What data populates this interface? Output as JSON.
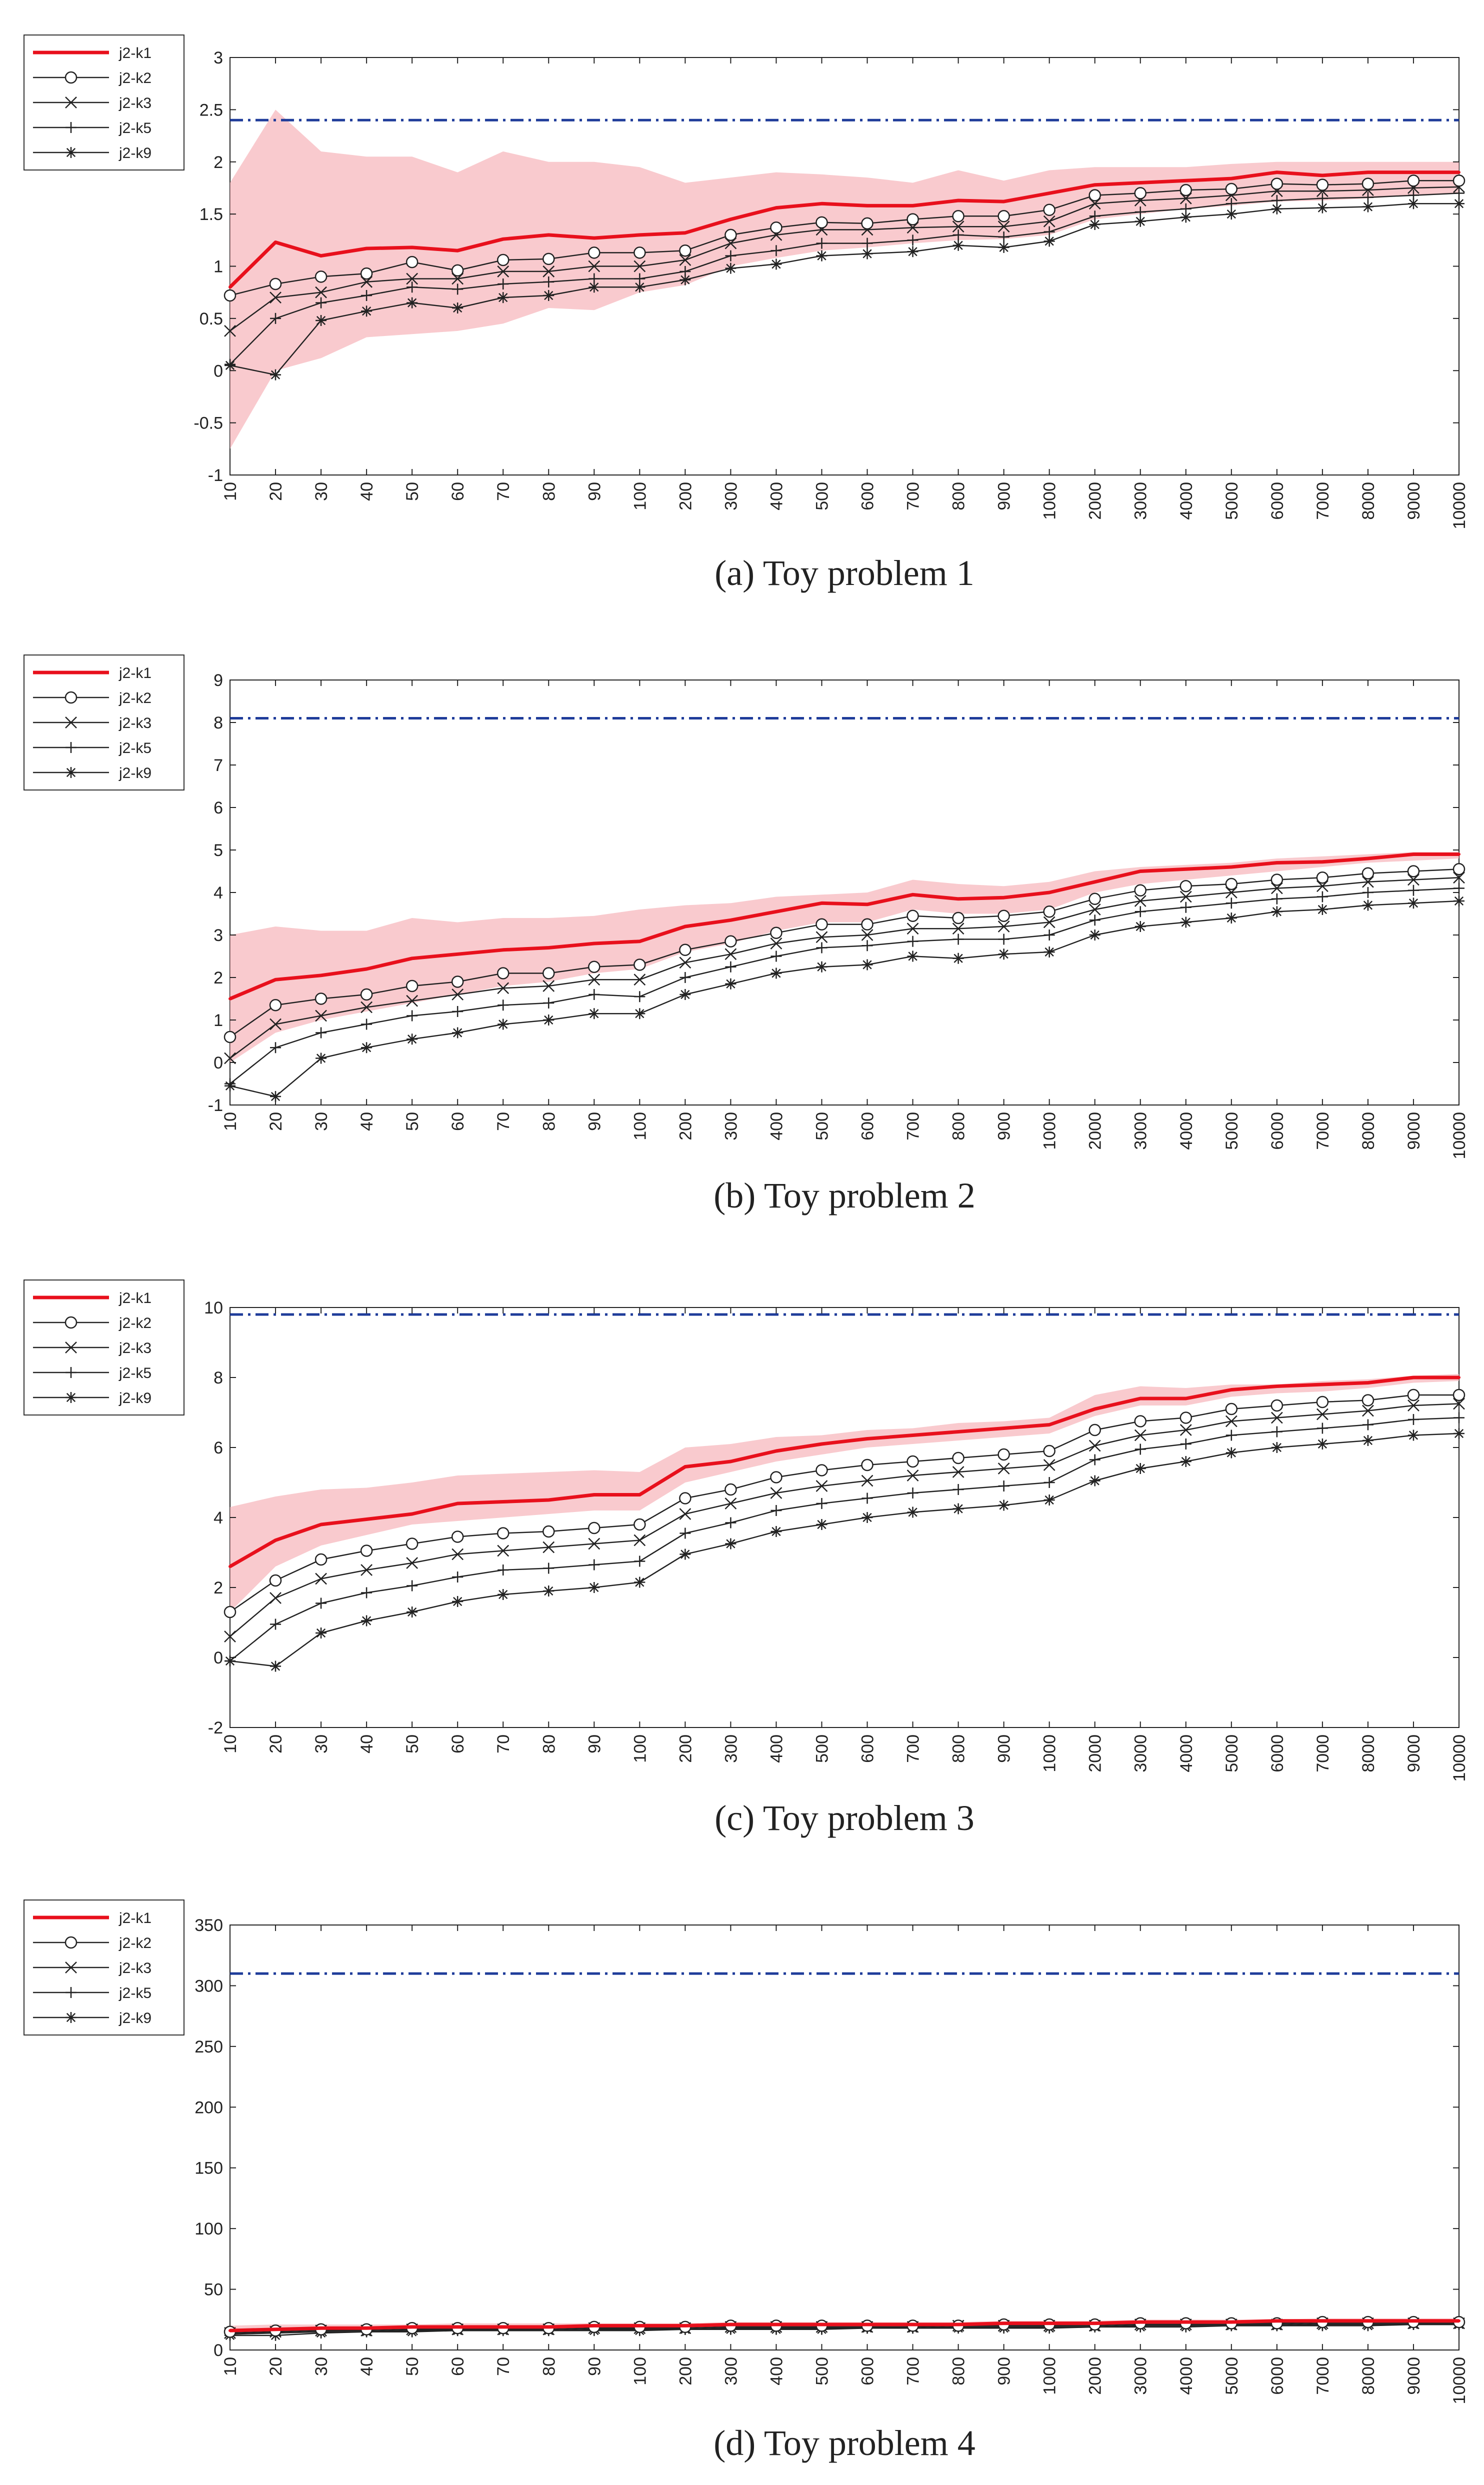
{
  "figure": {
    "x_categories": [
      "10",
      "20",
      "30",
      "40",
      "50",
      "60",
      "70",
      "80",
      "90",
      "100",
      "200",
      "300",
      "400",
      "500",
      "600",
      "700",
      "800",
      "900",
      "1000",
      "2000",
      "3000",
      "4000",
      "5000",
      "6000",
      "7000",
      "8000",
      "9000",
      "10000"
    ],
    "legend": [
      "j2-k1",
      "j2-k2",
      "j2-k3",
      "j2-k5",
      "j2-k9"
    ],
    "colors": {
      "main": "#e8101c",
      "band": "#f7b8bd",
      "ref": "#1f3c9a",
      "other": "#222222"
    }
  },
  "chart_data": [
    {
      "type": "line",
      "title": "Toy problem 1",
      "caption": "(a)  Toy problem 1",
      "ylim": [
        -1,
        3
      ],
      "yticks": [
        "-1",
        "-0.5",
        "0",
        "0.5",
        "1",
        "1.5",
        "2",
        "2.5",
        "3"
      ],
      "ytick_values": [
        -1,
        -0.5,
        0,
        0.5,
        1,
        1.5,
        2,
        2.5,
        3
      ],
      "reference": 2.4,
      "band_upper": [
        1.8,
        2.5,
        2.1,
        2.05,
        2.05,
        1.9,
        2.1,
        2.0,
        2.0,
        1.95,
        1.8,
        1.85,
        1.9,
        1.88,
        1.85,
        1.8,
        1.92,
        1.82,
        1.92,
        1.95,
        1.95,
        1.95,
        1.98,
        2.0,
        2.0,
        2.0,
        2.0,
        2.0
      ],
      "band_lower": [
        -0.75,
        0.0,
        0.12,
        0.32,
        0.35,
        0.38,
        0.45,
        0.6,
        0.58,
        0.75,
        0.82,
        1.0,
        1.08,
        1.15,
        1.18,
        1.22,
        1.25,
        1.26,
        1.3,
        1.45,
        1.5,
        1.55,
        1.58,
        1.62,
        1.63,
        1.65,
        1.68,
        1.7
      ],
      "series": [
        {
          "name": "j2-k1",
          "values": [
            0.8,
            1.23,
            1.1,
            1.17,
            1.18,
            1.15,
            1.26,
            1.3,
            1.27,
            1.3,
            1.32,
            1.45,
            1.56,
            1.6,
            1.58,
            1.58,
            1.63,
            1.62,
            1.7,
            1.78,
            1.8,
            1.82,
            1.84,
            1.9,
            1.87,
            1.9,
            1.9,
            1.9
          ]
        },
        {
          "name": "j2-k2",
          "values": [
            0.72,
            0.83,
            0.9,
            0.93,
            1.04,
            0.96,
            1.06,
            1.07,
            1.13,
            1.13,
            1.15,
            1.3,
            1.37,
            1.42,
            1.41,
            1.45,
            1.48,
            1.48,
            1.54,
            1.68,
            1.7,
            1.73,
            1.74,
            1.79,
            1.78,
            1.79,
            1.82,
            1.82
          ]
        },
        {
          "name": "j2-k3",
          "values": [
            0.38,
            0.7,
            0.75,
            0.85,
            0.88,
            0.88,
            0.95,
            0.95,
            1.0,
            1.0,
            1.06,
            1.22,
            1.3,
            1.35,
            1.35,
            1.37,
            1.38,
            1.38,
            1.43,
            1.6,
            1.63,
            1.65,
            1.68,
            1.72,
            1.72,
            1.73,
            1.75,
            1.76
          ]
        },
        {
          "name": "j2-k5",
          "values": [
            0.06,
            0.5,
            0.65,
            0.72,
            0.8,
            0.78,
            0.83,
            0.85,
            0.88,
            0.88,
            0.95,
            1.1,
            1.15,
            1.22,
            1.22,
            1.25,
            1.3,
            1.28,
            1.33,
            1.48,
            1.52,
            1.55,
            1.6,
            1.63,
            1.65,
            1.66,
            1.68,
            1.7
          ]
        },
        {
          "name": "j2-k9",
          "values": [
            0.05,
            -0.04,
            0.48,
            0.57,
            0.65,
            0.6,
            0.7,
            0.72,
            0.8,
            0.8,
            0.87,
            0.98,
            1.02,
            1.1,
            1.12,
            1.14,
            1.2,
            1.18,
            1.24,
            1.4,
            1.43,
            1.47,
            1.5,
            1.55,
            1.56,
            1.57,
            1.6,
            1.6
          ]
        }
      ]
    },
    {
      "type": "line",
      "title": "Toy problem 2",
      "caption": "(b)  Toy problem 2",
      "ylim": [
        -1,
        9
      ],
      "yticks": [
        "-1",
        "0",
        "1",
        "2",
        "3",
        "4",
        "5",
        "6",
        "7",
        "8",
        "9"
      ],
      "ytick_values": [
        -1,
        0,
        1,
        2,
        3,
        4,
        5,
        6,
        7,
        8,
        9
      ],
      "reference": 8.1,
      "band_upper": [
        3.0,
        3.2,
        3.1,
        3.1,
        3.4,
        3.3,
        3.4,
        3.4,
        3.45,
        3.6,
        3.7,
        3.75,
        3.9,
        3.95,
        4.0,
        4.3,
        4.2,
        4.15,
        4.25,
        4.5,
        4.6,
        4.65,
        4.7,
        4.8,
        4.85,
        4.9,
        4.95,
        4.95
      ],
      "band_lower": [
        0.0,
        0.7,
        1.0,
        1.2,
        1.4,
        1.6,
        1.8,
        1.9,
        2.1,
        2.2,
        2.6,
        2.8,
        3.1,
        3.3,
        3.3,
        3.6,
        3.5,
        3.5,
        3.6,
        4.0,
        4.2,
        4.3,
        4.4,
        4.5,
        4.6,
        4.7,
        4.75,
        4.8
      ],
      "series": [
        {
          "name": "j2-k1",
          "values": [
            1.5,
            1.95,
            2.05,
            2.2,
            2.45,
            2.55,
            2.65,
            2.7,
            2.8,
            2.85,
            3.2,
            3.35,
            3.55,
            3.75,
            3.72,
            3.95,
            3.85,
            3.88,
            4.0,
            4.25,
            4.5,
            4.55,
            4.6,
            4.7,
            4.72,
            4.8,
            4.9,
            4.9
          ]
        },
        {
          "name": "j2-k2",
          "values": [
            0.6,
            1.35,
            1.5,
            1.6,
            1.8,
            1.9,
            2.1,
            2.1,
            2.25,
            2.3,
            2.65,
            2.85,
            3.05,
            3.25,
            3.25,
            3.45,
            3.4,
            3.45,
            3.55,
            3.85,
            4.05,
            4.15,
            4.2,
            4.3,
            4.35,
            4.45,
            4.5,
            4.55
          ]
        },
        {
          "name": "j2-k3",
          "values": [
            0.1,
            0.9,
            1.1,
            1.3,
            1.45,
            1.6,
            1.75,
            1.8,
            1.95,
            1.95,
            2.35,
            2.55,
            2.8,
            2.95,
            3.0,
            3.15,
            3.15,
            3.2,
            3.3,
            3.6,
            3.8,
            3.9,
            4.0,
            4.1,
            4.15,
            4.25,
            4.3,
            4.35
          ]
        },
        {
          "name": "j2-k5",
          "values": [
            -0.5,
            0.35,
            0.7,
            0.9,
            1.1,
            1.2,
            1.35,
            1.4,
            1.6,
            1.55,
            2.0,
            2.25,
            2.5,
            2.7,
            2.75,
            2.85,
            2.9,
            2.9,
            3.0,
            3.35,
            3.55,
            3.65,
            3.75,
            3.85,
            3.9,
            4.0,
            4.05,
            4.1
          ]
        },
        {
          "name": "j2-k9",
          "values": [
            -0.55,
            -0.8,
            0.1,
            0.35,
            0.55,
            0.7,
            0.9,
            1.0,
            1.15,
            1.15,
            1.6,
            1.85,
            2.1,
            2.25,
            2.3,
            2.5,
            2.45,
            2.55,
            2.6,
            3.0,
            3.2,
            3.3,
            3.4,
            3.55,
            3.6,
            3.7,
            3.75,
            3.8
          ]
        }
      ]
    },
    {
      "type": "line",
      "title": "Toy problem 3",
      "caption": "(c)  Toy problem 3",
      "ylim": [
        -2,
        10
      ],
      "yticks": [
        "-2",
        "0",
        "2",
        "4",
        "6",
        "8",
        "10"
      ],
      "ytick_values": [
        -2,
        0,
        2,
        4,
        6,
        8,
        10
      ],
      "reference": 9.8,
      "band_upper": [
        4.3,
        4.6,
        4.8,
        4.85,
        5.0,
        5.2,
        5.25,
        5.3,
        5.35,
        5.3,
        6.0,
        6.1,
        6.3,
        6.35,
        6.5,
        6.55,
        6.7,
        6.75,
        6.85,
        7.5,
        7.75,
        7.7,
        7.8,
        7.8,
        7.9,
        7.95,
        8.05,
        8.1
      ],
      "band_lower": [
        1.3,
        2.6,
        3.2,
        3.5,
        3.8,
        3.9,
        4.0,
        4.1,
        4.2,
        4.2,
        5.0,
        5.3,
        5.6,
        5.8,
        6.0,
        6.1,
        6.2,
        6.3,
        6.4,
        6.9,
        7.2,
        7.2,
        7.45,
        7.55,
        7.6,
        7.7,
        7.85,
        7.9
      ],
      "series": [
        {
          "name": "j2-k1",
          "values": [
            2.6,
            3.35,
            3.8,
            3.95,
            4.1,
            4.4,
            4.45,
            4.5,
            4.65,
            4.65,
            5.45,
            5.6,
            5.9,
            6.1,
            6.25,
            6.35,
            6.45,
            6.55,
            6.65,
            7.1,
            7.4,
            7.4,
            7.65,
            7.75,
            7.8,
            7.85,
            8.0,
            8.0
          ]
        },
        {
          "name": "j2-k2",
          "values": [
            1.3,
            2.2,
            2.8,
            3.05,
            3.25,
            3.45,
            3.55,
            3.6,
            3.7,
            3.8,
            4.55,
            4.8,
            5.15,
            5.35,
            5.5,
            5.6,
            5.7,
            5.8,
            5.9,
            6.5,
            6.75,
            6.85,
            7.1,
            7.2,
            7.3,
            7.35,
            7.5,
            7.5
          ]
        },
        {
          "name": "j2-k3",
          "values": [
            0.6,
            1.7,
            2.25,
            2.5,
            2.7,
            2.95,
            3.05,
            3.15,
            3.25,
            3.35,
            4.1,
            4.4,
            4.7,
            4.9,
            5.05,
            5.2,
            5.3,
            5.4,
            5.5,
            6.05,
            6.35,
            6.5,
            6.75,
            6.85,
            6.95,
            7.05,
            7.2,
            7.25
          ]
        },
        {
          "name": "j2-k5",
          "values": [
            -0.1,
            0.95,
            1.55,
            1.85,
            2.05,
            2.3,
            2.5,
            2.55,
            2.65,
            2.75,
            3.55,
            3.85,
            4.2,
            4.4,
            4.55,
            4.7,
            4.8,
            4.9,
            5.0,
            5.65,
            5.95,
            6.1,
            6.35,
            6.45,
            6.55,
            6.65,
            6.8,
            6.85
          ]
        },
        {
          "name": "j2-k9",
          "values": [
            -0.1,
            -0.25,
            0.7,
            1.05,
            1.3,
            1.6,
            1.8,
            1.9,
            2.0,
            2.15,
            2.95,
            3.25,
            3.6,
            3.8,
            4.0,
            4.15,
            4.25,
            4.35,
            4.5,
            5.05,
            5.4,
            5.6,
            5.85,
            6.0,
            6.1,
            6.2,
            6.35,
            6.4
          ]
        }
      ]
    },
    {
      "type": "line",
      "title": "Toy problem 4",
      "caption": "(d)  Toy problem 4",
      "ylim": [
        0,
        350
      ],
      "yticks": [
        "0",
        "50",
        "100",
        "150",
        "200",
        "250",
        "300",
        "350"
      ],
      "ytick_values": [
        0,
        50,
        100,
        150,
        200,
        250,
        300,
        350
      ],
      "reference": 310,
      "band_upper": [
        20,
        21,
        21,
        21,
        21,
        22,
        22,
        22,
        22,
        22,
        22,
        23,
        23,
        23,
        23,
        23,
        23,
        24,
        24,
        24,
        25,
        25,
        25,
        25,
        26,
        26,
        26,
        26
      ],
      "band_lower": [
        12,
        15,
        16,
        16,
        17,
        17,
        17,
        17,
        18,
        18,
        18,
        19,
        19,
        19,
        19,
        20,
        20,
        20,
        20,
        21,
        21,
        21,
        22,
        22,
        22,
        22,
        22,
        23
      ],
      "series": [
        {
          "name": "j2-k1",
          "values": [
            16,
            17,
            18,
            18,
            19,
            19,
            19,
            19,
            20,
            20,
            20,
            21,
            21,
            21,
            21,
            21,
            21,
            22,
            22,
            22,
            23,
            23,
            23,
            24,
            24,
            24,
            24,
            24
          ]
        },
        {
          "name": "j2-k2",
          "values": [
            15,
            16,
            17,
            17,
            18,
            18,
            18,
            18,
            19,
            19,
            19,
            20,
            20,
            20,
            20,
            20,
            20,
            21,
            21,
            21,
            22,
            22,
            22,
            22,
            23,
            23,
            23,
            23
          ]
        },
        {
          "name": "j2-k3",
          "values": [
            14,
            15,
            16,
            16,
            17,
            17,
            17,
            17,
            18,
            18,
            18,
            19,
            19,
            19,
            19,
            19,
            20,
            20,
            20,
            20,
            21,
            21,
            21,
            21,
            22,
            22,
            22,
            22
          ]
        },
        {
          "name": "j2-k5",
          "values": [
            13,
            14,
            15,
            15,
            16,
            16,
            16,
            16,
            17,
            17,
            17,
            18,
            18,
            18,
            18,
            18,
            19,
            19,
            19,
            19,
            20,
            20,
            20,
            20,
            21,
            21,
            21,
            21
          ]
        },
        {
          "name": "j2-k9",
          "values": [
            12,
            12,
            14,
            15,
            15,
            16,
            16,
            16,
            16,
            16,
            17,
            17,
            17,
            17,
            18,
            18,
            18,
            18,
            18,
            19,
            19,
            19,
            20,
            20,
            20,
            20,
            21,
            21
          ]
        }
      ]
    }
  ]
}
